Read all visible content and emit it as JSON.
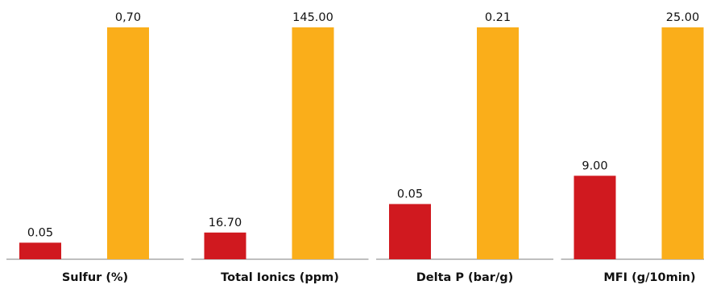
{
  "colors": {
    "series_a": "#D0191F",
    "series_b": "#FAAE1A",
    "baseline": "#999999",
    "text": "#111111"
  },
  "chart_data": {
    "type": "bar",
    "layout": "small-multiples",
    "grid": false,
    "legend": "none",
    "panels": [
      {
        "category": "Sulfur (%)",
        "values": [
          0.05,
          0.7
        ],
        "labels": [
          "0.05",
          "0,70"
        ],
        "ylim": [
          0,
          0.7
        ]
      },
      {
        "category": "Total Ionics (ppm)",
        "values": [
          16.7,
          145.0
        ],
        "labels": [
          "16.70",
          "145.00"
        ],
        "ylim": [
          0,
          145.0
        ]
      },
      {
        "category": "Delta P (bar/g)",
        "values": [
          0.05,
          0.21
        ],
        "labels": [
          "0.05",
          "0.21"
        ],
        "ylim": [
          0,
          0.21
        ]
      },
      {
        "category": "MFI (g/10min)",
        "values": [
          9.0,
          25.0
        ],
        "labels": [
          "9.00",
          "25.00"
        ],
        "ylim": [
          0,
          25.0
        ]
      }
    ]
  }
}
